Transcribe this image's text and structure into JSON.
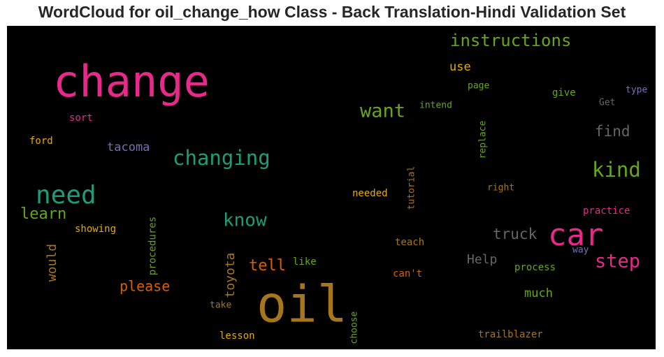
{
  "title": "WordCloud for oil_change_how Class - Back Translation-Hindi Validation Set",
  "background": "#000000",
  "chart_data": {
    "type": "wordcloud",
    "title": "WordCloud for oil_change_how Class - Back Translation-Hindi Validation Set",
    "colormap": "Dark2",
    "words": [
      {
        "text": "change",
        "color": "#e7298a"
      },
      {
        "text": "oil",
        "color": "#a6761d"
      },
      {
        "text": "car",
        "color": "#e7298a"
      },
      {
        "text": "need",
        "color": "#1b9e77"
      },
      {
        "text": "changing",
        "color": "#1b9e77"
      },
      {
        "text": "instructions",
        "color": "#66a61e"
      },
      {
        "text": "want",
        "color": "#66a61e"
      },
      {
        "text": "kind",
        "color": "#66a61e"
      },
      {
        "text": "know",
        "color": "#1b9e77"
      },
      {
        "text": "step",
        "color": "#e7298a"
      },
      {
        "text": "learn",
        "color": "#66a61e"
      },
      {
        "text": "tell",
        "color": "#d95f02"
      },
      {
        "text": "truck",
        "color": "#666666"
      },
      {
        "text": "find",
        "color": "#666666"
      },
      {
        "text": "please",
        "color": "#d95f02"
      },
      {
        "text": "toyota",
        "color": "#a6761d"
      },
      {
        "text": "would",
        "color": "#a6761d"
      },
      {
        "text": "tacoma",
        "color": "#7570b3"
      },
      {
        "text": "Help",
        "color": "#666666"
      },
      {
        "text": "much",
        "color": "#66a61e"
      },
      {
        "text": "use",
        "color": "#e6ab02"
      },
      {
        "text": "procedures",
        "color": "#66a61e"
      },
      {
        "text": "showing",
        "color": "#e6ab02"
      },
      {
        "text": "ford",
        "color": "#e6ab02"
      },
      {
        "text": "sort",
        "color": "#e7298a"
      },
      {
        "text": "needed",
        "color": "#e6ab02"
      },
      {
        "text": "tutorial",
        "color": "#a6761d"
      },
      {
        "text": "replace",
        "color": "#66a61e"
      },
      {
        "text": "right",
        "color": "#a6761d"
      },
      {
        "text": "practice",
        "color": "#e7298a"
      },
      {
        "text": "way",
        "color": "#7570b3"
      },
      {
        "text": "process",
        "color": "#66a61e"
      },
      {
        "text": "teach",
        "color": "#a6761d"
      },
      {
        "text": "can't",
        "color": "#d95f02"
      },
      {
        "text": "like",
        "color": "#66a61e"
      },
      {
        "text": "take",
        "color": "#a6761d"
      },
      {
        "text": "lesson",
        "color": "#e6ab02"
      },
      {
        "text": "choose",
        "color": "#66a61e"
      },
      {
        "text": "trailblazer",
        "color": "#a6761d"
      },
      {
        "text": "page",
        "color": "#66a61e"
      },
      {
        "text": "intend",
        "color": "#66a61e"
      },
      {
        "text": "give",
        "color": "#66a61e"
      },
      {
        "text": "Get",
        "color": "#666666"
      },
      {
        "text": "type",
        "color": "#7570b3"
      }
    ]
  }
}
